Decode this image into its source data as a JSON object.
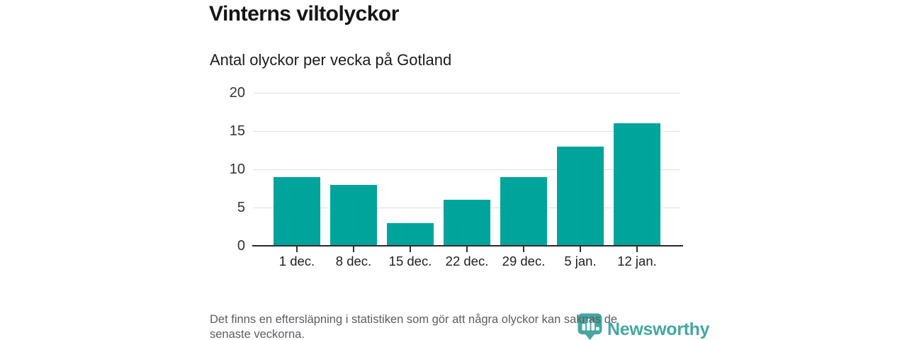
{
  "chart_data": {
    "type": "bar",
    "title": "Vinterns viltolyckor",
    "subtitle": "Antal olyckor per vecka på Gotland",
    "categories": [
      "1 dec.",
      "8 dec.",
      "15 dec.",
      "22 dec.",
      "29 dec.",
      "5 jan.",
      "12 jan."
    ],
    "values": [
      9,
      8,
      3,
      6,
      9,
      13,
      16
    ],
    "ylim": [
      0,
      20
    ],
    "yticks": [
      20,
      15,
      10,
      5,
      0
    ],
    "grid": true,
    "legend": "none",
    "bar_color": "#00a49b"
  },
  "footer": {
    "note_line1": "Det finns en eftersläpning i statistiken som gör att några olyckor kan saknas de",
    "note_line2": "senaste veckorna."
  },
  "logo": {
    "name": "Newsworthy",
    "color": "#45a7a0",
    "icon": "newsworthy-chart-bubble-icon"
  }
}
